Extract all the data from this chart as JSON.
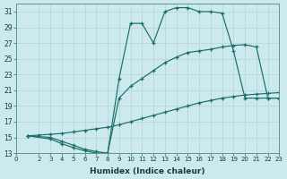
{
  "xlabel": "Humidex (Indice chaleur)",
  "bg_color": "#cce9ed",
  "line_color": "#1a6e6a",
  "grid_color": "#b8d8dc",
  "xlim": [
    0,
    23
  ],
  "ylim": [
    13,
    32
  ],
  "xticks": [
    0,
    2,
    3,
    4,
    5,
    6,
    7,
    8,
    9,
    10,
    11,
    12,
    13,
    14,
    15,
    16,
    17,
    18,
    19,
    20,
    21,
    22,
    23
  ],
  "yticks": [
    13,
    15,
    17,
    19,
    21,
    23,
    25,
    27,
    29,
    31
  ],
  "line1_x": [
    1,
    2,
    3,
    4,
    5,
    6,
    7,
    8,
    9,
    10,
    11,
    12,
    13,
    14,
    15,
    16,
    17,
    18,
    19,
    20,
    21,
    22,
    23
  ],
  "line1_y": [
    15.2,
    15.3,
    15.4,
    15.5,
    15.7,
    15.9,
    16.1,
    16.3,
    16.6,
    17.0,
    17.4,
    17.8,
    18.2,
    18.6,
    19.0,
    19.4,
    19.7,
    20.0,
    20.2,
    20.4,
    20.5,
    20.6,
    20.7
  ],
  "line2_x": [
    1,
    3,
    4,
    5,
    6,
    7,
    8,
    9,
    10,
    11,
    12,
    13,
    14,
    15,
    16,
    17,
    18,
    19,
    20,
    21,
    22,
    23
  ],
  "line2_y": [
    15.2,
    14.8,
    14.2,
    13.7,
    13.3,
    13.0,
    13.0,
    20.0,
    21.5,
    22.5,
    23.5,
    24.5,
    25.2,
    25.8,
    26.0,
    26.2,
    26.5,
    26.7,
    26.8,
    26.5,
    20.0,
    20.0
  ],
  "line3_x": [
    1,
    3,
    4,
    5,
    6,
    7,
    8,
    9,
    10,
    11,
    12,
    13,
    14,
    15,
    16,
    17,
    18,
    19,
    20,
    21,
    22,
    23
  ],
  "line3_y": [
    15.2,
    15.0,
    14.5,
    14.0,
    13.5,
    13.2,
    13.0,
    22.5,
    29.5,
    29.5,
    27.0,
    31.0,
    31.5,
    31.5,
    31.0,
    31.0,
    30.8,
    26.0,
    20.0,
    20.0,
    20.0,
    20.0
  ]
}
